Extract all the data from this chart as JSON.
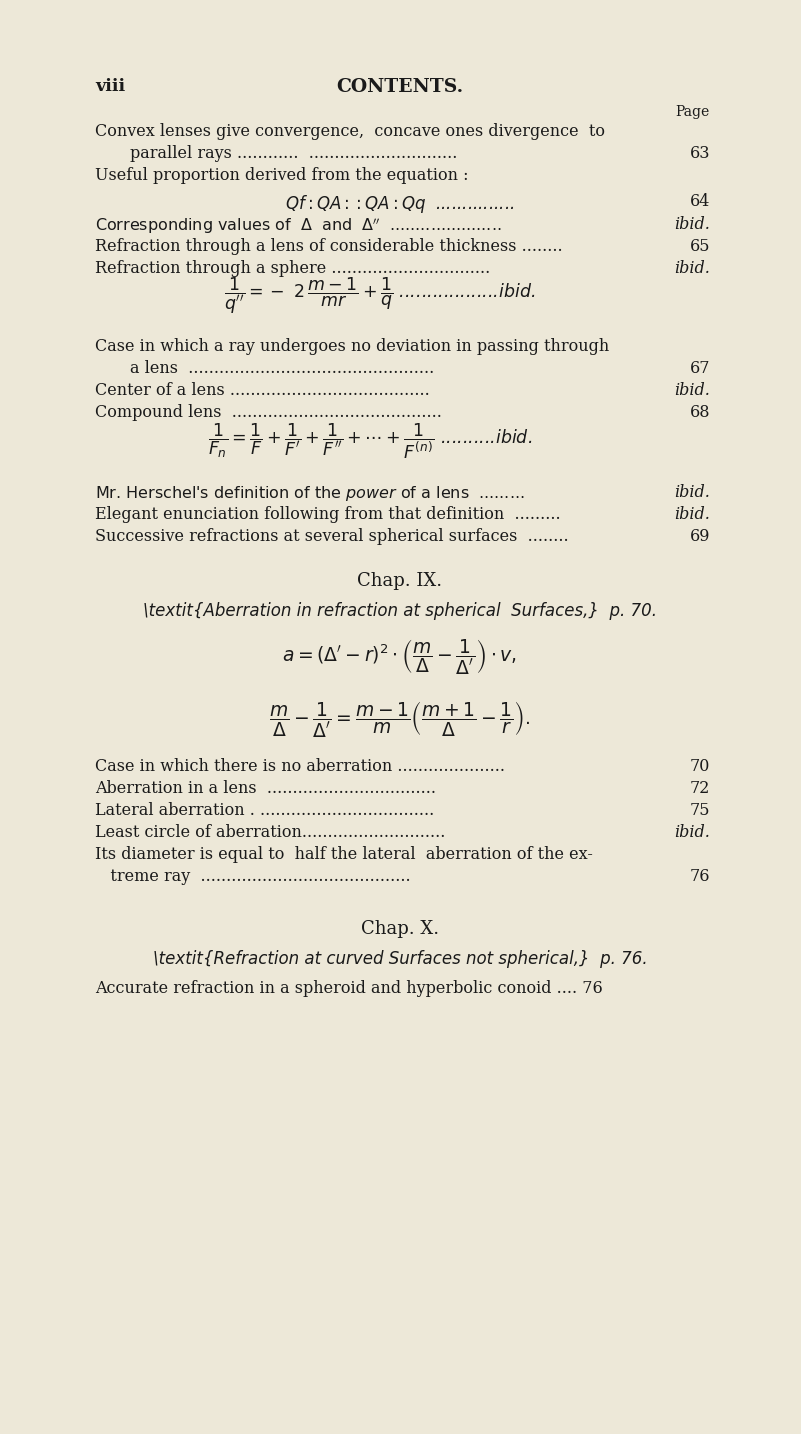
{
  "bg_color": "#ede8d8",
  "text_color": "#1a1a1a",
  "fig_w": 8.01,
  "fig_h": 14.34,
  "dpi": 100
}
